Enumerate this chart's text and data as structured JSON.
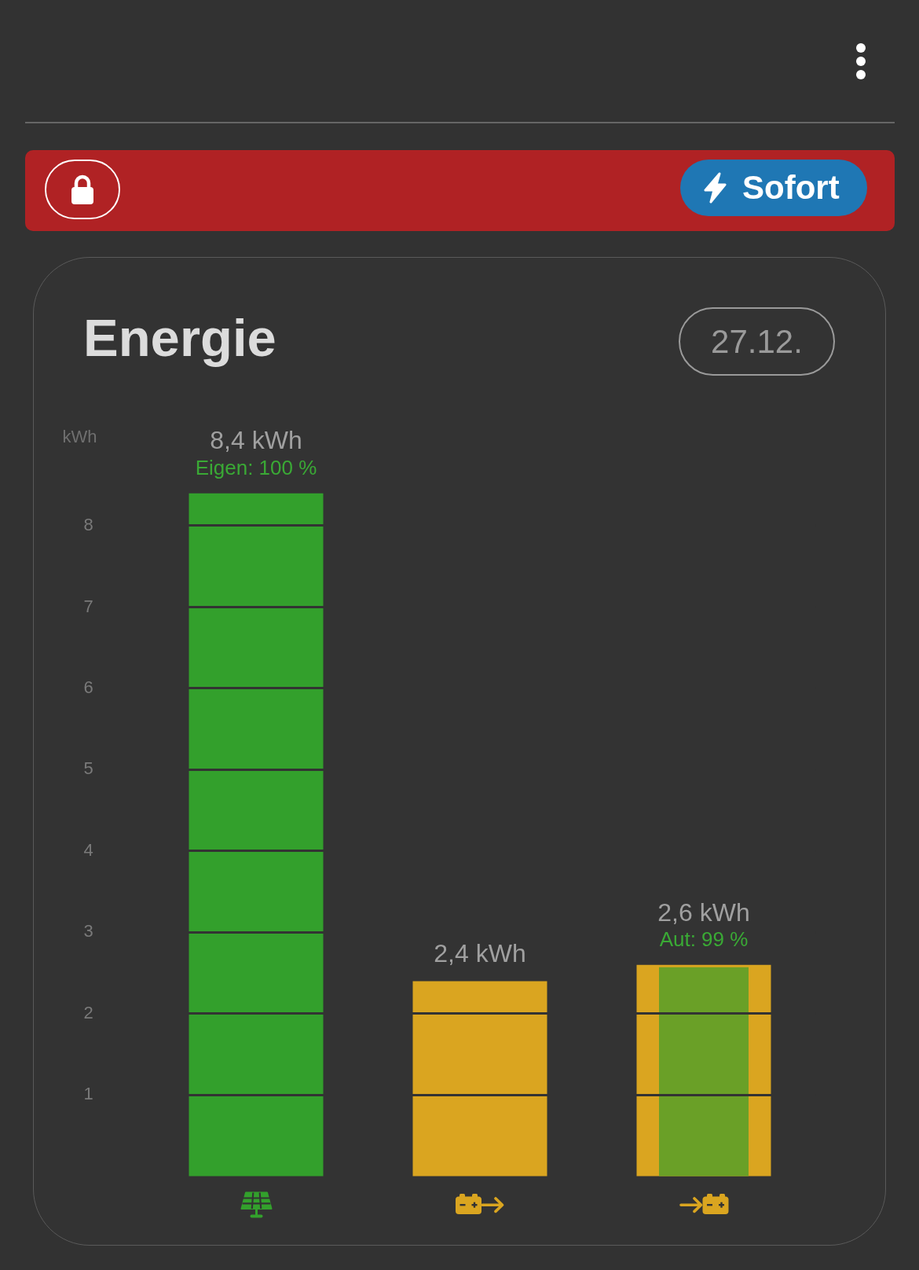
{
  "chart_data": {
    "type": "bar",
    "title": "Energie",
    "subtitle": "27.12.",
    "ylabel": "kWh",
    "categories": [
      null,
      null,
      null
    ],
    "series": [
      {
        "colors": [
          "#33a02c",
          "#daa520",
          "#daa520"
        ],
        "values": [
          8.4,
          2.4,
          2.6
        ],
        "value_labels": [
          "8,4 kWh",
          "2,4 kWh",
          "2,6 kWh"
        ]
      },
      {
        "color": "#6aa027",
        "values": [
          null,
          null,
          2.57
        ]
      }
    ],
    "ylim": [
      0,
      8.4
    ],
    "yticks": [
      1,
      2,
      3,
      4,
      5,
      6,
      7,
      8
    ],
    "grid": "y",
    "tick_labels": "y",
    "annotations": [
      "Sofort",
      {
        "text": "Eigen: 100 %",
        "y": 8.4
      },
      {
        "text": "Aut: 99 %",
        "y": 2.6
      }
    ]
  }
}
